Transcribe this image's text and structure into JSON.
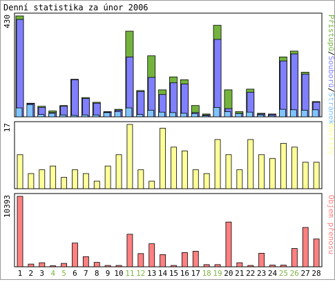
{
  "title": "Denní statistika za únor 2006",
  "colors": {
    "pristupu": "#73b33d",
    "souboru": "#8080ff",
    "stranek": "#80c4ff",
    "navstev": "#ffff99",
    "objem": "#ff8080",
    "weekend_label": "#7cb342",
    "weekday_label": "#000000"
  },
  "chart_data": [
    {
      "type": "bar",
      "title": "Denní statistika za únor 2006",
      "ymax_label": "430",
      "legend": [
        "Přístupů",
        "Souborů",
        "Stránek"
      ],
      "legend_separator": "/",
      "categories": [
        "1",
        "2",
        "3",
        "4",
        "5",
        "6",
        "7",
        "8",
        "9",
        "10",
        "11",
        "12",
        "13",
        "14",
        "15",
        "16",
        "17",
        "18",
        "19",
        "20",
        "21",
        "22",
        "23",
        "24",
        "25",
        "26",
        "27",
        "28"
      ],
      "weekend": [
        false,
        false,
        false,
        true,
        true,
        false,
        false,
        false,
        false,
        false,
        true,
        true,
        false,
        false,
        false,
        false,
        false,
        true,
        true,
        false,
        false,
        false,
        false,
        false,
        true,
        true,
        false,
        false
      ],
      "ylim": [
        0,
        430
      ],
      "series": [
        {
          "name": "Přístupů",
          "values": [
            430,
            58,
            45,
            25,
            48,
            160,
            82,
            62,
            22,
            32,
            365,
            112,
            260,
            115,
            170,
            158,
            48,
            12,
            390,
            115,
            22,
            118,
            15,
            12,
            255,
            280,
            190,
            65
          ]
        },
        {
          "name": "Souborů",
          "values": [
            415,
            56,
            40,
            18,
            45,
            158,
            78,
            58,
            20,
            28,
            255,
            108,
            168,
            95,
            145,
            140,
            18,
            8,
            330,
            35,
            15,
            105,
            12,
            10,
            238,
            268,
            182,
            62
          ]
        },
        {
          "name": "Stránek",
          "values": [
            38,
            52,
            10,
            15,
            8,
            6,
            8,
            8,
            18,
            22,
            38,
            10,
            28,
            20,
            18,
            15,
            14,
            5,
            40,
            22,
            14,
            20,
            8,
            5,
            32,
            30,
            28,
            30
          ]
        }
      ]
    },
    {
      "type": "bar",
      "ymax_label": "17",
      "legend": [
        "Návštěv"
      ],
      "ylim": [
        0,
        17
      ],
      "series": [
        {
          "name": "Návštěv",
          "values": [
            9,
            4,
            5,
            6,
            3,
            5,
            4,
            2,
            6,
            9,
            17,
            5,
            2,
            16,
            11,
            10,
            5,
            4,
            13,
            9,
            5,
            13,
            9,
            8,
            12,
            11,
            7,
            7
          ]
        }
      ]
    },
    {
      "type": "bar",
      "ymax_label": "10393",
      "legend": [
        "Objem přenosu"
      ],
      "ylim": [
        0,
        10393
      ],
      "series": [
        {
          "name": "Objem přenosu",
          "values": [
            10393,
            400,
            600,
            150,
            500,
            3500,
            1500,
            650,
            200,
            200,
            4800,
            1950,
            3400,
            1800,
            200,
            2100,
            2300,
            320,
            320,
            6600,
            600,
            200,
            2000,
            250,
            250,
            2700,
            5800,
            4100
          ]
        }
      ]
    }
  ]
}
